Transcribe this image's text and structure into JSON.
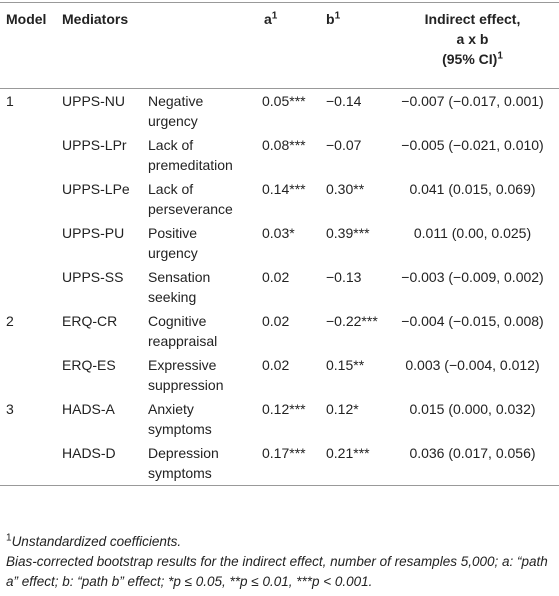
{
  "table": {
    "header": {
      "model": "Model",
      "mediators": "Mediators",
      "a": {
        "text": "a",
        "sup": "1"
      },
      "b": {
        "text": "b",
        "sup": "1"
      },
      "indirect": {
        "lines": [
          "Indirect effect,",
          "a x b",
          "(95% CI)"
        ],
        "sup": "1"
      }
    },
    "groups": [
      {
        "model": "1",
        "rows": [
          {
            "abbr": "UPPS-NU",
            "name": "Negative urgency",
            "a": "0.05***",
            "b": "−0.14",
            "indirect": "−0.007 (−0.017, 0.001)"
          },
          {
            "abbr": "UPPS-LPr",
            "name": "Lack of premeditation",
            "a": "0.08***",
            "b": "−0.07",
            "indirect": "−0.005 (−0.021, 0.010)"
          },
          {
            "abbr": "UPPS-LPe",
            "name": "Lack of perseverance",
            "a": "0.14***",
            "b": "0.30**",
            "indirect": "0.041 (0.015, 0.069)"
          },
          {
            "abbr": "UPPS-PU",
            "name": "Positive urgency",
            "a": "0.03*",
            "b": "0.39***",
            "indirect": "0.011 (0.00, 0.025)"
          },
          {
            "abbr": "UPPS-SS",
            "name": "Sensation seeking",
            "a": "0.02",
            "b": "−0.13",
            "indirect": "−0.003 (−0.009, 0.002)"
          }
        ]
      },
      {
        "model": "2",
        "rows": [
          {
            "abbr": "ERQ-CR",
            "name": "Cognitive reappraisal",
            "a": "0.02",
            "b": "−0.22***",
            "indirect": "−0.004 (−0.015, 0.008)"
          },
          {
            "abbr": "ERQ-ES",
            "name": "Expressive suppression",
            "a": "0.02",
            "b": "0.15**",
            "indirect": "0.003 (−0.004, 0.012)"
          }
        ]
      },
      {
        "model": "3",
        "rows": [
          {
            "abbr": "HADS-A",
            "name": "Anxiety symptoms",
            "a": "0.12***",
            "b": "0.12*",
            "indirect": "0.015 (0.000, 0.032)"
          },
          {
            "abbr": "HADS-D",
            "name": "Depression symptoms",
            "a": "0.17***",
            "b": "0.21***",
            "indirect": "0.036 (0.017, 0.056)"
          }
        ]
      }
    ]
  },
  "footnotes": [
    {
      "marker": "1",
      "text": "Unstandardized coefficients."
    },
    {
      "text": "Bias-corrected bootstrap results for the indirect effect, number of resamples 5,000; a: “path a” effect; b: “path b” effect; *p ≤ 0.05, **p ≤ 0.01, ***p < 0.001."
    }
  ]
}
